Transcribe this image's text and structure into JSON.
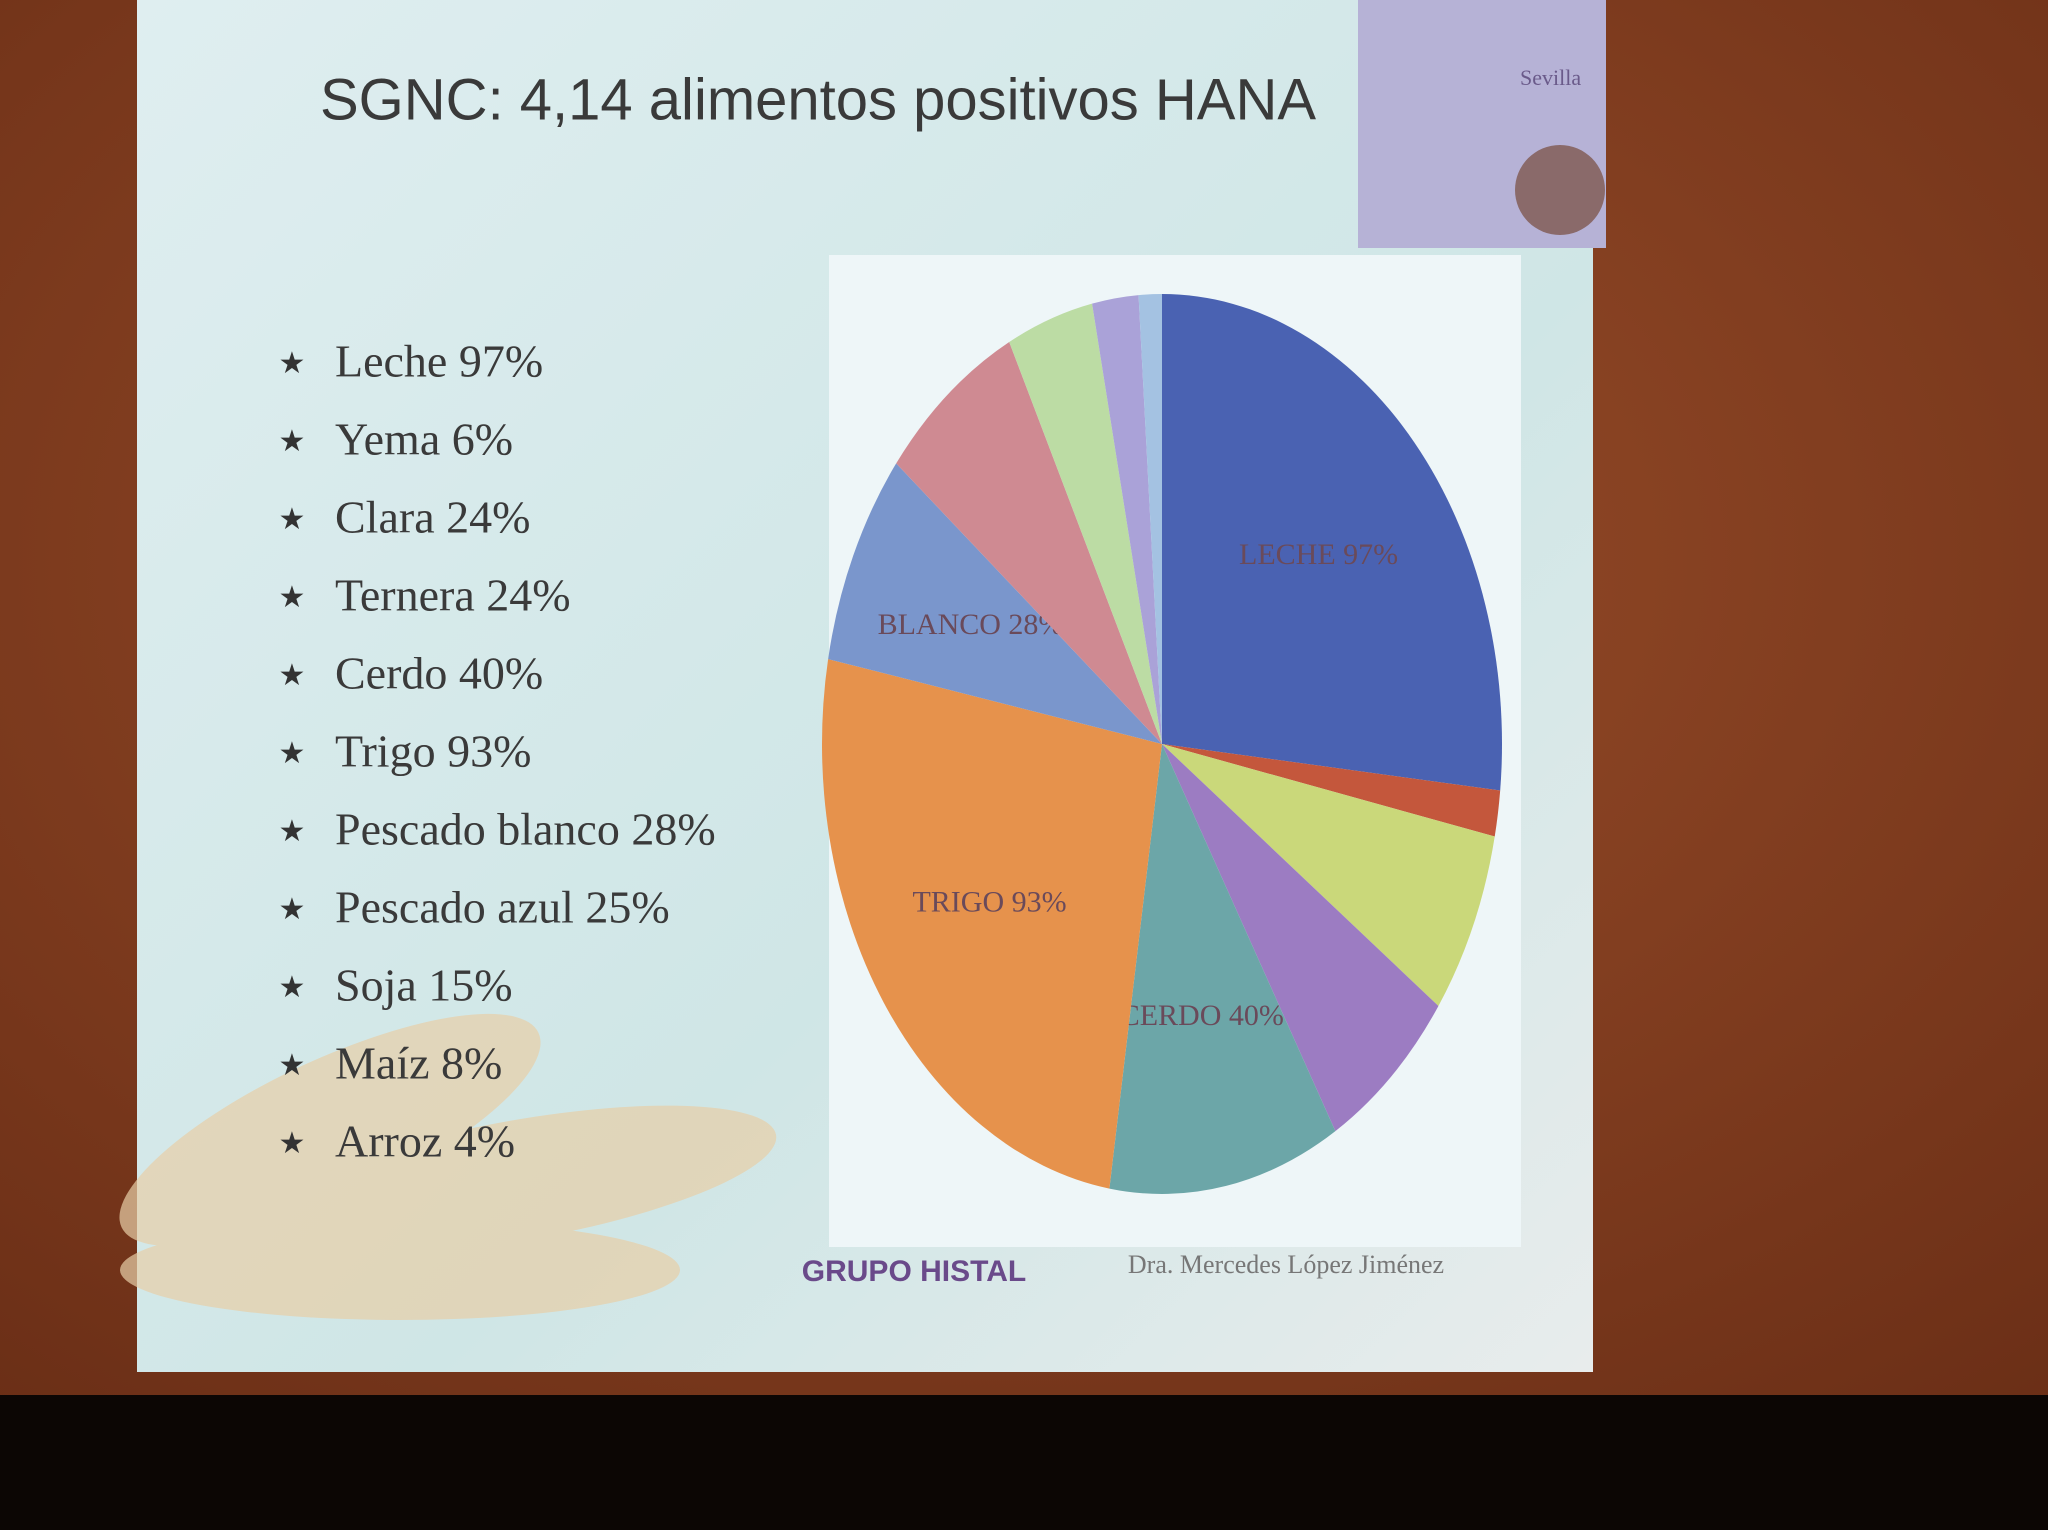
{
  "slide": {
    "title": "SGNC: 4,14 alimentos positivos HANA",
    "items": [
      "Leche 97%",
      "Yema 6%",
      "Clara 24%",
      "Ternera 24%",
      "Cerdo 40%",
      "Trigo 93%",
      "Pescado blanco 28%",
      "Pescado azul 25%",
      "Soja 15%",
      "Maíz 8%",
      "Arroz 4%"
    ],
    "logo": "GRUPO HISTAL",
    "author": "Dra. Mercedes López Jiménez",
    "badge": "Sevilla"
  },
  "chart_data": {
    "type": "pie",
    "values": [
      97,
      6,
      24,
      24,
      40,
      93,
      28,
      25,
      15,
      8,
      4
    ],
    "value_labels": [
      "LECHE 97%",
      null,
      null,
      null,
      "CERDO 40%",
      "TRIGO 93%",
      "BLANCO 28%",
      null,
      null,
      null,
      null
    ],
    "colors": [
      "#4a62b2",
      "#c4573c",
      "#cad87a",
      "#9c7cc2",
      "#6ca6a8",
      "#e6924c",
      "#7a96cc",
      "#cf8a92",
      "#bcdca4",
      "#aaa2d8",
      "#a4c2e2"
    ]
  }
}
